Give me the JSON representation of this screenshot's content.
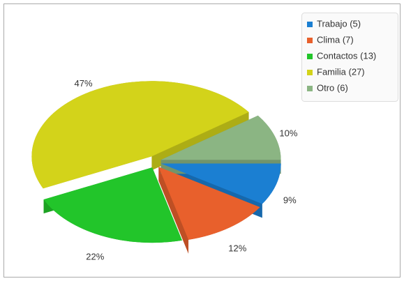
{
  "chart_data": {
    "type": "pie3d",
    "categories": [
      "Trabajo (5)",
      "Clima (7)",
      "Contactos (13)",
      "Familia (27)",
      "Otro (6)"
    ],
    "values": [
      9,
      12,
      22,
      47,
      10
    ],
    "value_labels": [
      "9%",
      "12%",
      "22%",
      "47%",
      "10%"
    ],
    "colors": [
      "#1b7fd2",
      "#e8602c",
      "#22c52a",
      "#d3d31a",
      "#8bb583"
    ],
    "legend": "top-right"
  }
}
